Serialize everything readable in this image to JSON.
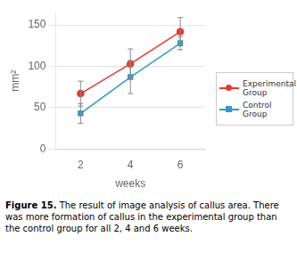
{
  "chart_data": {
    "type": "line",
    "x": [
      2,
      4,
      6
    ],
    "series": [
      {
        "name": "Experimental\nGroup",
        "color": "#e8392a",
        "marker": "circle",
        "values": [
          67,
          103,
          142
        ],
        "yerr": [
          15,
          18,
          17
        ]
      },
      {
        "name": "Control Group",
        "color": "#3399cc",
        "marker": "square",
        "values": [
          43,
          87,
          128
        ],
        "yerr": [
          12,
          20,
          8
        ]
      }
    ],
    "xlim": [
      1,
      7
    ],
    "xticks": [
      2,
      4,
      6
    ],
    "ylim": [
      0,
      165
    ],
    "yticks": [
      0,
      50,
      100,
      150
    ],
    "xlabel": "weeks",
    "ylabel": "mm²",
    "grid": "y",
    "legend": "right",
    "caption_bold": "Figure 15.",
    "caption": "The result of image analysis of callus area. There was more formation of callus in the experimental group than the control group for all 2, 4 and 6 weeks."
  }
}
